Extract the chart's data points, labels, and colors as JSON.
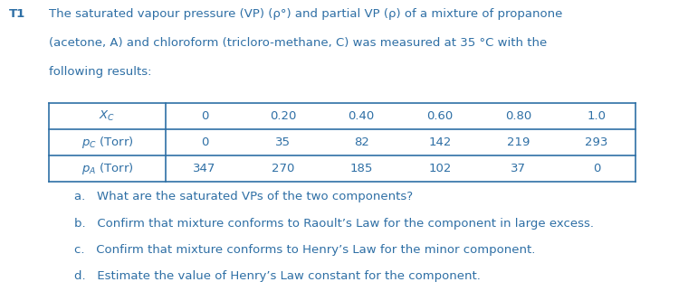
{
  "label_t1": "T1",
  "title_line1": "The saturated vapour pressure (VP) (p°) and partial VP (p) of a mixture of propanone",
  "title_line2": "(acetone, A) and chloroform (tricloro-methane, C) was measured at 35 °C with the",
  "title_line3": "following results:",
  "col_headers": [
    "Xc",
    "0",
    "0.20",
    "0.40",
    "0.60",
    "0.80",
    "1.0"
  ],
  "row2_header": "pc (Torr)",
  "row2_values": [
    "0",
    "35",
    "82",
    "142",
    "219",
    "293"
  ],
  "row3_header": "pA (Torr)",
  "row3_values": [
    "347",
    "270",
    "185",
    "102",
    "37",
    "0"
  ],
  "qa": "a.   What are the saturated VPs of the two components?",
  "qb": "b.   Confirm that mixture conforms to Raoult’s Law for the component in large excess.",
  "qc": "c.   Confirm that mixture conforms to Henry’s Law for the minor component.",
  "qd": "d.   Estimate the value of Henry’s Law constant for the component.",
  "bg_color": "#ffffff",
  "text_color": "#2e6fa5",
  "table_border_color": "#2e6fa5",
  "font_size_title": 9.5,
  "font_size_table": 9.5,
  "font_size_questions": 9.5
}
